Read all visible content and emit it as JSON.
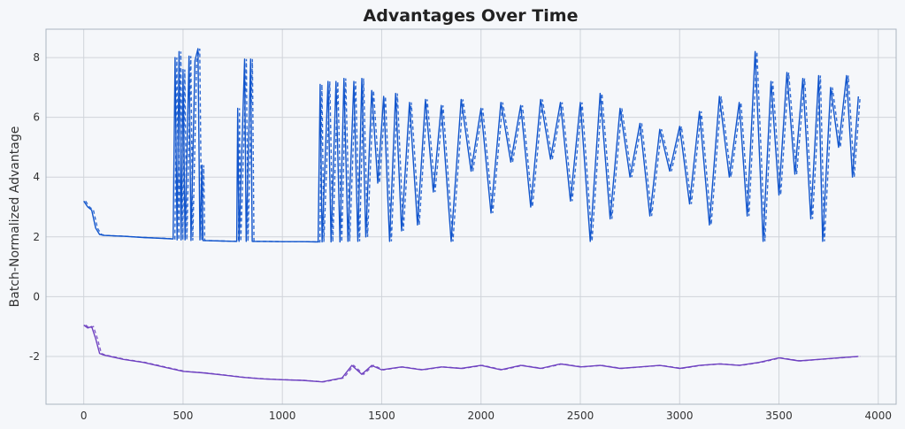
{
  "chart_data": {
    "type": "line",
    "title": "Advantages Over Time",
    "xlabel": "",
    "ylabel": "Batch-Normalized Advantage",
    "xlim": [
      -190,
      4090
    ],
    "ylim": [
      -3.6,
      8.95
    ],
    "xticks": [
      0,
      500,
      1000,
      1500,
      2000,
      2500,
      3000,
      3500,
      4000
    ],
    "yticks": [
      -2,
      0,
      2,
      4,
      6,
      8
    ],
    "grid": true,
    "legend": "none",
    "series": [
      {
        "color": "#1155cc",
        "style": "solid+dashed",
        "points": [
          [
            0,
            3.2
          ],
          [
            20,
            3.0
          ],
          [
            40,
            2.9
          ],
          [
            60,
            2.3
          ],
          [
            80,
            2.08
          ],
          [
            100,
            2.05
          ],
          [
            200,
            2.02
          ],
          [
            300,
            1.98
          ],
          [
            400,
            1.95
          ],
          [
            450,
            1.93
          ],
          [
            460,
            8.0
          ],
          [
            470,
            1.9
          ],
          [
            480,
            8.2
          ],
          [
            490,
            1.9
          ],
          [
            500,
            7.6
          ],
          [
            510,
            1.9
          ],
          [
            530,
            8.05
          ],
          [
            540,
            1.88
          ],
          [
            560,
            7.9
          ],
          [
            575,
            8.3
          ],
          [
            585,
            1.9
          ],
          [
            595,
            4.4
          ],
          [
            600,
            1.88
          ],
          [
            700,
            1.86
          ],
          [
            770,
            1.85
          ],
          [
            775,
            6.3
          ],
          [
            782,
            1.85
          ],
          [
            810,
            7.95
          ],
          [
            818,
            1.85
          ],
          [
            840,
            7.95
          ],
          [
            848,
            1.85
          ],
          [
            900,
            1.85
          ],
          [
            1000,
            1.84
          ],
          [
            1100,
            1.84
          ],
          [
            1180,
            1.83
          ],
          [
            1190,
            7.1
          ],
          [
            1200,
            1.83
          ],
          [
            1230,
            7.2
          ],
          [
            1245,
            1.83
          ],
          [
            1270,
            7.2
          ],
          [
            1290,
            1.83
          ],
          [
            1310,
            7.3
          ],
          [
            1330,
            1.85
          ],
          [
            1360,
            7.2
          ],
          [
            1380,
            1.85
          ],
          [
            1400,
            7.3
          ],
          [
            1420,
            2.0
          ],
          [
            1450,
            6.9
          ],
          [
            1480,
            3.8
          ],
          [
            1510,
            6.7
          ],
          [
            1540,
            1.85
          ],
          [
            1570,
            6.8
          ],
          [
            1600,
            2.2
          ],
          [
            1640,
            6.5
          ],
          [
            1680,
            2.4
          ],
          [
            1720,
            6.6
          ],
          [
            1760,
            3.5
          ],
          [
            1800,
            6.4
          ],
          [
            1850,
            1.85
          ],
          [
            1900,
            6.6
          ],
          [
            1950,
            4.2
          ],
          [
            2000,
            6.3
          ],
          [
            2050,
            2.8
          ],
          [
            2100,
            6.5
          ],
          [
            2150,
            4.5
          ],
          [
            2200,
            6.4
          ],
          [
            2250,
            3.0
          ],
          [
            2300,
            6.6
          ],
          [
            2350,
            4.6
          ],
          [
            2400,
            6.5
          ],
          [
            2450,
            3.2
          ],
          [
            2500,
            6.5
          ],
          [
            2550,
            1.85
          ],
          [
            2600,
            6.8
          ],
          [
            2650,
            2.6
          ],
          [
            2700,
            6.3
          ],
          [
            2750,
            4.0
          ],
          [
            2800,
            5.8
          ],
          [
            2850,
            2.7
          ],
          [
            2900,
            5.6
          ],
          [
            2950,
            4.2
          ],
          [
            3000,
            5.7
          ],
          [
            3050,
            3.1
          ],
          [
            3100,
            6.2
          ],
          [
            3150,
            2.4
          ],
          [
            3200,
            6.7
          ],
          [
            3250,
            4.0
          ],
          [
            3300,
            6.5
          ],
          [
            3340,
            2.7
          ],
          [
            3380,
            8.2
          ],
          [
            3420,
            1.85
          ],
          [
            3460,
            7.2
          ],
          [
            3500,
            3.4
          ],
          [
            3540,
            7.5
          ],
          [
            3580,
            4.1
          ],
          [
            3620,
            7.3
          ],
          [
            3660,
            2.6
          ],
          [
            3700,
            7.4
          ],
          [
            3720,
            1.85
          ],
          [
            3760,
            7.0
          ],
          [
            3800,
            5.0
          ],
          [
            3840,
            7.4
          ],
          [
            3870,
            4.0
          ],
          [
            3900,
            6.7
          ]
        ]
      },
      {
        "color": "#6f42c1",
        "style": "solid+dashed",
        "points": [
          [
            0,
            -0.95
          ],
          [
            20,
            -1.05
          ],
          [
            40,
            -1.0
          ],
          [
            60,
            -1.4
          ],
          [
            80,
            -1.9
          ],
          [
            100,
            -1.95
          ],
          [
            200,
            -2.1
          ],
          [
            300,
            -2.2
          ],
          [
            400,
            -2.35
          ],
          [
            500,
            -2.5
          ],
          [
            600,
            -2.55
          ],
          [
            700,
            -2.62
          ],
          [
            800,
            -2.7
          ],
          [
            900,
            -2.75
          ],
          [
            1000,
            -2.78
          ],
          [
            1100,
            -2.8
          ],
          [
            1200,
            -2.85
          ],
          [
            1300,
            -2.72
          ],
          [
            1350,
            -2.3
          ],
          [
            1400,
            -2.6
          ],
          [
            1450,
            -2.3
          ],
          [
            1500,
            -2.45
          ],
          [
            1600,
            -2.35
          ],
          [
            1700,
            -2.45
          ],
          [
            1800,
            -2.35
          ],
          [
            1900,
            -2.4
          ],
          [
            2000,
            -2.3
          ],
          [
            2100,
            -2.45
          ],
          [
            2200,
            -2.3
          ],
          [
            2300,
            -2.4
          ],
          [
            2400,
            -2.25
          ],
          [
            2500,
            -2.35
          ],
          [
            2600,
            -2.3
          ],
          [
            2700,
            -2.4
          ],
          [
            2800,
            -2.35
          ],
          [
            2900,
            -2.3
          ],
          [
            3000,
            -2.4
          ],
          [
            3100,
            -2.3
          ],
          [
            3200,
            -2.25
          ],
          [
            3300,
            -2.3
          ],
          [
            3400,
            -2.2
          ],
          [
            3500,
            -2.05
          ],
          [
            3600,
            -2.15
          ],
          [
            3700,
            -2.1
          ],
          [
            3800,
            -2.05
          ],
          [
            3900,
            -2.0
          ]
        ]
      }
    ]
  }
}
